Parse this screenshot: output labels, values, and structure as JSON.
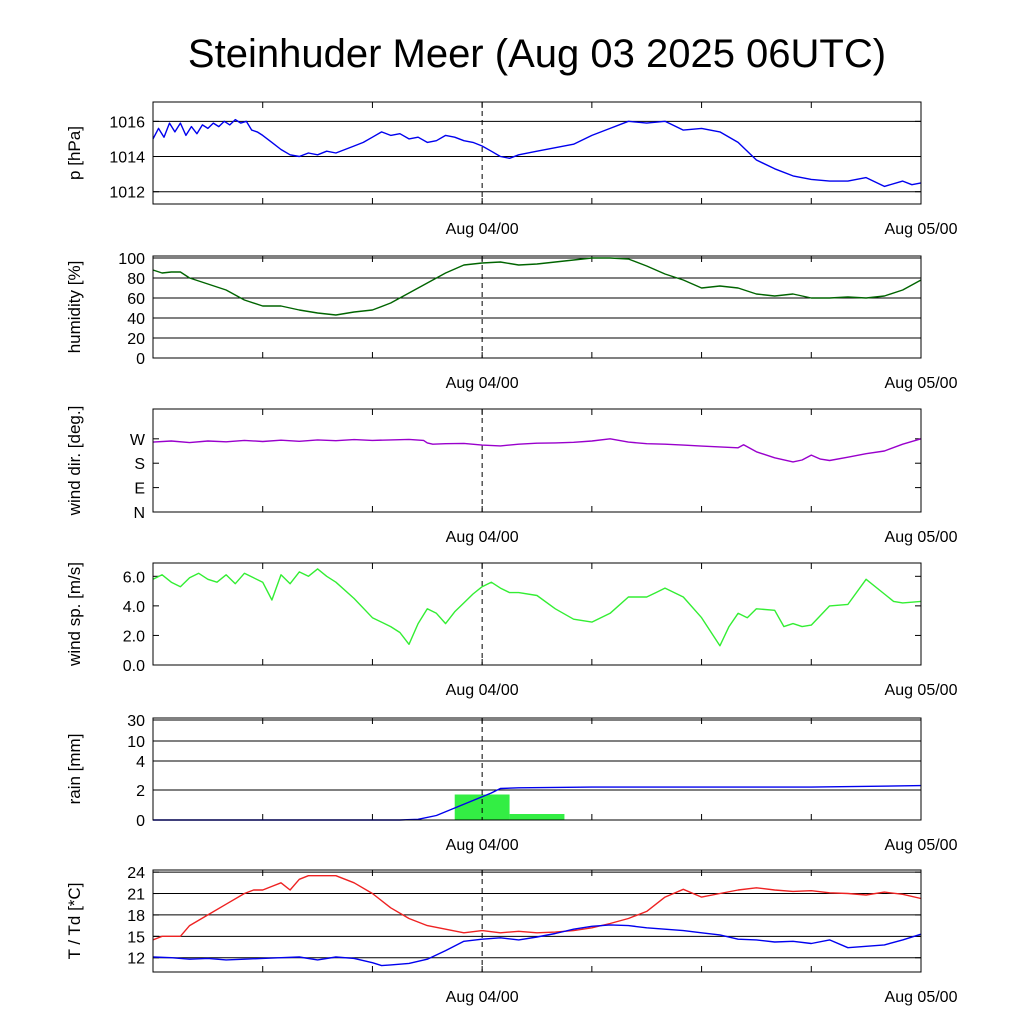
{
  "chart_data": {
    "title": "Steinhuder Meer (Aug 03 2025 06UTC)",
    "x_range": [
      "Aug 03 2025 06UTC",
      "Aug 05 2025 00UTC"
    ],
    "x_ticks": [
      {
        "label": "Aug 04/00",
        "hours": 18
      },
      {
        "label": "Aug 05/00",
        "hours": 42
      }
    ],
    "panels": [
      {
        "type": "line",
        "ylabel": "p [hPa]",
        "ylim": [
          1011.3,
          1017.1
        ],
        "yticks": [
          1012,
          1014,
          1016
        ],
        "ytick_labels": [
          "1012",
          "1014",
          "1016"
        ],
        "grid": true,
        "series": [
          {
            "color": "#0000ee",
            "x": [
              0,
              0.3,
              0.6,
              0.9,
              1.2,
              1.5,
              1.8,
              2.1,
              2.4,
              2.7,
              3,
              3.3,
              3.6,
              3.9,
              4.2,
              4.5,
              4.8,
              5.1,
              5.4,
              5.7,
              6,
              6.5,
              7,
              7.5,
              8,
              8.5,
              9,
              9.5,
              10,
              10.5,
              11,
              11.5,
              12,
              12.5,
              13,
              13.5,
              14,
              14.5,
              15,
              15.5,
              16,
              16.5,
              17,
              17.5,
              18,
              18.5,
              19,
              19.5,
              20,
              21,
              22,
              23,
              24,
              25,
              26,
              27,
              28,
              29,
              30,
              31,
              32,
              33,
              34,
              35,
              36,
              37,
              38,
              39,
              40,
              41,
              41.5,
              42
            ],
            "y": [
              1015,
              1015.6,
              1015.1,
              1015.9,
              1015.4,
              1015.9,
              1015.2,
              1015.7,
              1015.3,
              1015.8,
              1015.6,
              1015.9,
              1015.7,
              1016,
              1015.8,
              1016.1,
              1015.9,
              1016,
              1015.5,
              1015.4,
              1015.2,
              1014.8,
              1014.4,
              1014.1,
              1014,
              1014.2,
              1014.1,
              1014.3,
              1014.2,
              1014.4,
              1014.6,
              1014.8,
              1015.1,
              1015.4,
              1015.2,
              1015.3,
              1015,
              1015.1,
              1014.8,
              1014.9,
              1015.2,
              1015.1,
              1014.9,
              1014.8,
              1014.6,
              1014.3,
              1014,
              1013.9,
              1014.1,
              1014.3,
              1014.5,
              1014.7,
              1015.2,
              1015.6,
              1016,
              1015.9,
              1016,
              1015.5,
              1015.6,
              1015.4,
              1014.8,
              1013.8,
              1013.3,
              1012.9,
              1012.7,
              1012.6,
              1012.6,
              1012.8,
              1012.3,
              1012.6,
              1012.4,
              1012.5
            ]
          }
        ]
      },
      {
        "type": "line",
        "ylabel": "humidity [%]",
        "ylim": [
          0,
          102
        ],
        "yticks": [
          0,
          20,
          40,
          60,
          80,
          100
        ],
        "ytick_labels": [
          "0",
          "20",
          "40",
          "60",
          "80",
          "100"
        ],
        "grid": true,
        "series": [
          {
            "color": "#006400",
            "x": [
              0,
              0.5,
              1,
              1.5,
              2,
              3,
              4,
              5,
              6,
              7,
              8,
              9,
              10,
              11,
              12,
              13,
              14,
              15,
              16,
              17,
              18,
              19,
              20,
              21,
              22,
              23,
              24,
              25,
              26,
              27,
              28,
              29,
              30,
              31,
              32,
              33,
              34,
              35,
              36,
              37,
              38,
              39,
              40,
              41,
              42
            ],
            "y": [
              88,
              85,
              86,
              86,
              80,
              74,
              68,
              58,
              52,
              52,
              48,
              45,
              43,
              46,
              48,
              55,
              65,
              75,
              85,
              93,
              95,
              96,
              93,
              94,
              96,
              98,
              100,
              100,
              99,
              92,
              84,
              78,
              70,
              72,
              70,
              64,
              62,
              64,
              60,
              60,
              61,
              60,
              62,
              68,
              78
            ]
          }
        ]
      },
      {
        "type": "line",
        "ylabel": "wind dir. [deg.]",
        "ylim": [
          0,
          380
        ],
        "yticks": [
          0,
          90,
          180,
          270
        ],
        "ytick_labels": [
          "N",
          "E",
          "S",
          "W"
        ],
        "grid": false,
        "series": [
          {
            "color": "#9900cc",
            "x": [
              0,
              1,
              2,
              3,
              4,
              5,
              6,
              7,
              8,
              9,
              10,
              11,
              12,
              13,
              14,
              14.8,
              15,
              15.3,
              16,
              17,
              18,
              19,
              20,
              21,
              22,
              23,
              24,
              25,
              26,
              27,
              28,
              29,
              30,
              31,
              32,
              32.3,
              33,
              34,
              35,
              35.5,
              36,
              36.5,
              37,
              38,
              39,
              40,
              41,
              42
            ],
            "y": [
              258,
              262,
              256,
              262,
              259,
              264,
              260,
              265,
              261,
              266,
              263,
              267,
              264,
              266,
              268,
              264,
              255,
              250,
              252,
              253,
              247,
              244,
              250,
              254,
              255,
              257,
              262,
              270,
              258,
              252,
              250,
              247,
              243,
              240,
              237,
              248,
              222,
              200,
              185,
              192,
              210,
              195,
              190,
              202,
              215,
              225,
              250,
              270
            ]
          }
        ]
      },
      {
        "type": "line",
        "ylabel": "wind sp. [m/s]",
        "ylim": [
          0,
          6.9
        ],
        "yticks": [
          0,
          2,
          4,
          6
        ],
        "ytick_labels": [
          "0.0",
          "2.0",
          "4.0",
          "6.0"
        ],
        "grid": false,
        "series": [
          {
            "color": "#33ee33",
            "x": [
              0,
              0.5,
              1,
              1.5,
              2,
              2.5,
              3,
              3.5,
              4,
              4.5,
              5,
              5.5,
              6,
              6.5,
              7,
              7.5,
              8,
              8.5,
              9,
              9.5,
              10,
              11,
              12,
              13,
              13.5,
              14,
              14.5,
              15,
              15.5,
              16,
              16.5,
              17,
              17.5,
              18,
              18.5,
              19,
              19.5,
              20,
              21,
              22,
              23,
              24,
              25,
              26,
              27,
              27.5,
              28,
              29,
              30,
              31,
              31.5,
              32,
              32.5,
              33,
              34,
              34.5,
              35,
              35.5,
              36,
              37,
              38,
              39,
              40,
              40.5,
              41,
              42
            ],
            "y": [
              5.8,
              6.1,
              5.6,
              5.3,
              5.9,
              6.2,
              5.8,
              5.6,
              6.1,
              5.5,
              6.2,
              5.9,
              5.6,
              4.4,
              6.1,
              5.5,
              6.3,
              6,
              6.5,
              6,
              5.6,
              4.5,
              3.2,
              2.6,
              2.2,
              1.4,
              2.8,
              3.8,
              3.5,
              2.8,
              3.6,
              4.2,
              4.8,
              5.3,
              5.6,
              5.2,
              4.9,
              4.9,
              4.7,
              3.8,
              3.1,
              2.9,
              3.5,
              4.6,
              4.6,
              4.9,
              5.2,
              4.6,
              3.2,
              1.3,
              2.6,
              3.5,
              3.2,
              3.8,
              3.7,
              2.6,
              2.8,
              2.6,
              2.7,
              4,
              4.1,
              5.8,
              4.8,
              4.3,
              4.2,
              4.3
            ]
          }
        ]
      },
      {
        "type": "bar+line",
        "ylabel": "rain [mm]",
        "ylim": [
          0,
          31
        ],
        "yticks": [
          0,
          2,
          4,
          10,
          30
        ],
        "ytick_labels": [
          "0",
          "2",
          "4",
          "10",
          "30"
        ],
        "y_scale": "nonlinear",
        "grid": true,
        "bars": {
          "color": "#33ee44",
          "intervals": [
            {
              "start": 16.5,
              "end": 19.5,
              "value": 1.7
            },
            {
              "start": 19.5,
              "end": 22.5,
              "value": 0.4
            }
          ]
        },
        "series": [
          {
            "color": "#0000ee",
            "x": [
              0,
              13.5,
              14.5,
              15.5,
              16.5,
              17.5,
              18.5,
              19,
              20,
              24,
              30,
              36,
              42
            ],
            "y": [
              0,
              0,
              0.05,
              0.3,
              0.8,
              1.3,
              1.8,
              2.1,
              2.15,
              2.2,
              2.2,
              2.2,
              2.3
            ]
          }
        ]
      },
      {
        "type": "line",
        "ylabel": "T / Td [*C]",
        "ylim": [
          10,
          24.3
        ],
        "yticks": [
          12,
          15,
          18,
          21,
          24
        ],
        "ytick_labels": [
          "12",
          "15",
          "18",
          "21",
          "24"
        ],
        "grid": true,
        "series": [
          {
            "color": "#ee2222",
            "x": [
              0,
              0.5,
              1,
              1.5,
              2,
              3,
              4,
              5,
              5.5,
              6,
              6.5,
              7,
              7.5,
              8,
              8.5,
              9,
              9.5,
              10,
              11,
              12,
              13,
              14,
              15,
              16,
              17,
              18,
              19,
              20,
              21,
              22,
              23,
              24,
              25,
              26,
              27,
              28,
              29,
              30,
              31,
              32,
              33,
              34,
              35,
              36,
              37,
              38,
              39,
              40,
              41,
              42
            ],
            "y": [
              14.5,
              15,
              15,
              15,
              16.5,
              18,
              19.5,
              21,
              21.5,
              21.5,
              22,
              22.5,
              21.5,
              23,
              23.5,
              23.5,
              23.5,
              23.5,
              22.5,
              21,
              19,
              17.5,
              16.5,
              16,
              15.5,
              15.8,
              15.5,
              15.7,
              15.5,
              15.6,
              15.8,
              16.2,
              16.8,
              17.5,
              18.5,
              20.5,
              21.6,
              20.5,
              21,
              21.5,
              21.8,
              21.5,
              21.3,
              21.4,
              21.1,
              21,
              20.8,
              21.2,
              20.9,
              20.3
            ]
          },
          {
            "color": "#0000ee",
            "x": [
              0,
              1,
              2,
              3,
              4,
              5,
              6,
              7,
              8,
              9,
              10,
              11,
              12,
              12.5,
              13,
              14,
              15,
              16,
              17,
              18,
              19,
              20,
              21,
              22,
              23,
              24,
              25,
              26,
              27,
              28,
              29,
              30,
              31,
              32,
              33,
              34,
              35,
              36,
              37,
              38,
              39,
              40,
              41,
              42
            ],
            "y": [
              12.1,
              12,
              11.8,
              11.9,
              11.7,
              11.8,
              11.9,
              12,
              12.1,
              11.7,
              12.1,
              11.9,
              11.3,
              10.9,
              11,
              11.2,
              11.8,
              13,
              14.3,
              14.6,
              14.8,
              14.5,
              14.9,
              15.4,
              16,
              16.4,
              16.6,
              16.5,
              16.2,
              16,
              15.8,
              15.5,
              15.2,
              14.6,
              14.5,
              14.2,
              14.3,
              14,
              14.5,
              13.4,
              13.6,
              13.8,
              14.5,
              15.3
            ]
          }
        ]
      }
    ]
  }
}
